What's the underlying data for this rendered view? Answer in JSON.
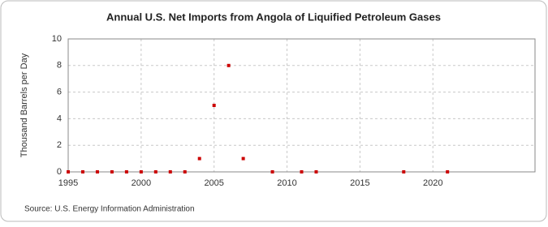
{
  "chart_data": {
    "type": "scatter",
    "title": "Annual U.S. Net Imports from Angola of Liquified Petroleum Gases",
    "y_label": "Thousand Barrels per Day",
    "source": "Source: U.S. Energy Information Administration",
    "x": [
      1995,
      1996,
      1997,
      1998,
      1999,
      2000,
      2001,
      2002,
      2003,
      2004,
      2005,
      2006,
      2007,
      2009,
      2011,
      2012,
      2018,
      2021
    ],
    "values": [
      0,
      0,
      0,
      0,
      0,
      0,
      0,
      0,
      0,
      1,
      5,
      8,
      1,
      0,
      0,
      0,
      0,
      0
    ],
    "color": "#cc0000",
    "xlim": [
      1995,
      2027
    ],
    "xticks": [
      1995,
      2000,
      2005,
      2010,
      2015,
      2020
    ],
    "ylim": [
      0,
      10
    ],
    "yticks": [
      0,
      2,
      4,
      6,
      8,
      10
    ],
    "grid": true
  }
}
